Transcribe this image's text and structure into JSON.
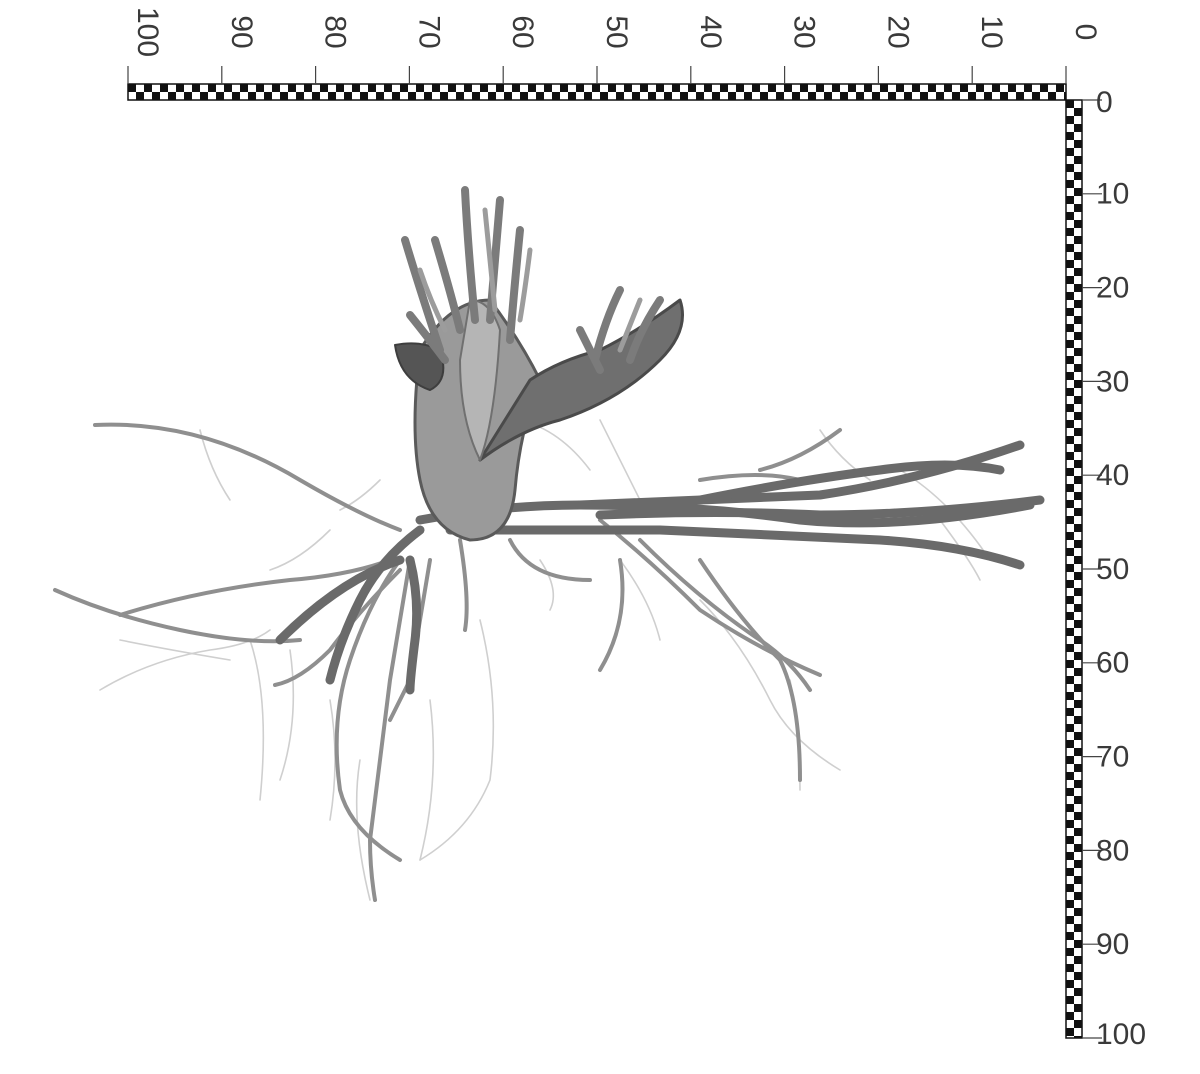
{
  "photo": {
    "subject_icon": "plant-root-system-icon",
    "colors": {
      "background": "#ffffff",
      "root_dark": "#4a4a4a",
      "root_mid": "#8c8c8c",
      "root_light": "#c4c4c4",
      "scale_black": "#111111"
    }
  },
  "scale_top": {
    "labels": [
      "100",
      "90",
      "80",
      "70",
      "60",
      "50",
      "40",
      "30",
      "20",
      "10",
      "0"
    ]
  },
  "scale_right": {
    "labels": [
      "0",
      "10",
      "20",
      "30",
      "40",
      "50",
      "60",
      "70",
      "80",
      "90",
      "100"
    ]
  }
}
